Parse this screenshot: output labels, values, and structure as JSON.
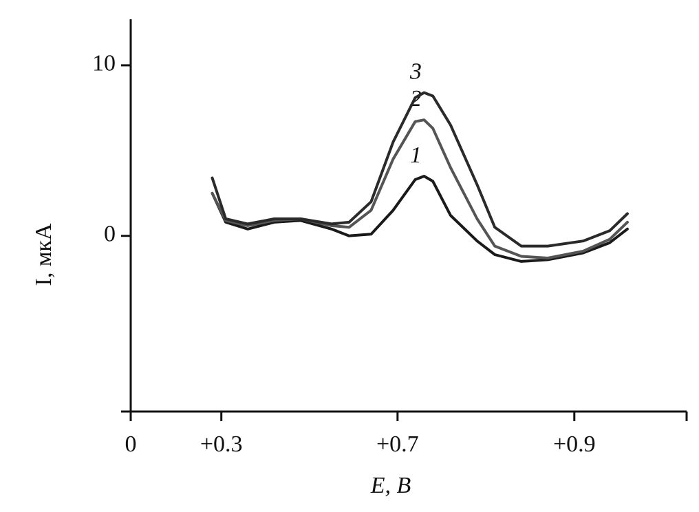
{
  "chart_data": {
    "type": "line",
    "x_label": "E, В",
    "y_label": "I, мкА",
    "x": [
      0.27,
      0.31,
      0.36,
      0.42,
      0.48,
      0.55,
      0.59,
      0.64,
      0.69,
      0.72,
      0.73,
      0.74,
      0.76,
      0.79,
      0.81,
      0.84,
      0.87,
      0.91,
      0.94,
      0.96
    ],
    "series": [
      {
        "name": "1",
        "color": "#1a1a1a",
        "values": [
          2.5,
          0.8,
          0.4,
          0.8,
          0.9,
          0.4,
          0,
          0.1,
          1.5,
          3.3,
          3.5,
          3.2,
          1.2,
          -0.3,
          -1.1,
          -1.5,
          -1.4,
          -1.0,
          -0.4,
          0.4
        ]
      },
      {
        "name": "2",
        "color": "#555555",
        "values": [
          2.5,
          0.9,
          0.6,
          0.9,
          1.0,
          0.6,
          0.5,
          1.5,
          4.5,
          6.7,
          6.8,
          6.3,
          4.0,
          1.0,
          -0.6,
          -1.2,
          -1.3,
          -0.9,
          -0.2,
          0.8
        ]
      },
      {
        "name": "3",
        "color": "#2a2a2a",
        "values": [
          3.4,
          1.0,
          0.7,
          1.0,
          1.0,
          0.7,
          0.8,
          2.0,
          5.5,
          8.1,
          8.4,
          8.2,
          6.5,
          3.0,
          0.5,
          -0.6,
          -0.6,
          -0.3,
          0.3,
          1.3
        ]
      }
    ],
    "xlim": [
      0,
      1.027
    ],
    "xticks": [
      0,
      {
        "value": 0.3,
        "label": "+0.3"
      },
      {
        "value": 0.7,
        "label": "+0.7"
      },
      {
        "value": 0.9,
        "label": "+0.9"
      }
    ],
    "ylim": [
      -10.3,
      12.7
    ],
    "yticks": [
      0,
      10
    ],
    "grid": false
  }
}
